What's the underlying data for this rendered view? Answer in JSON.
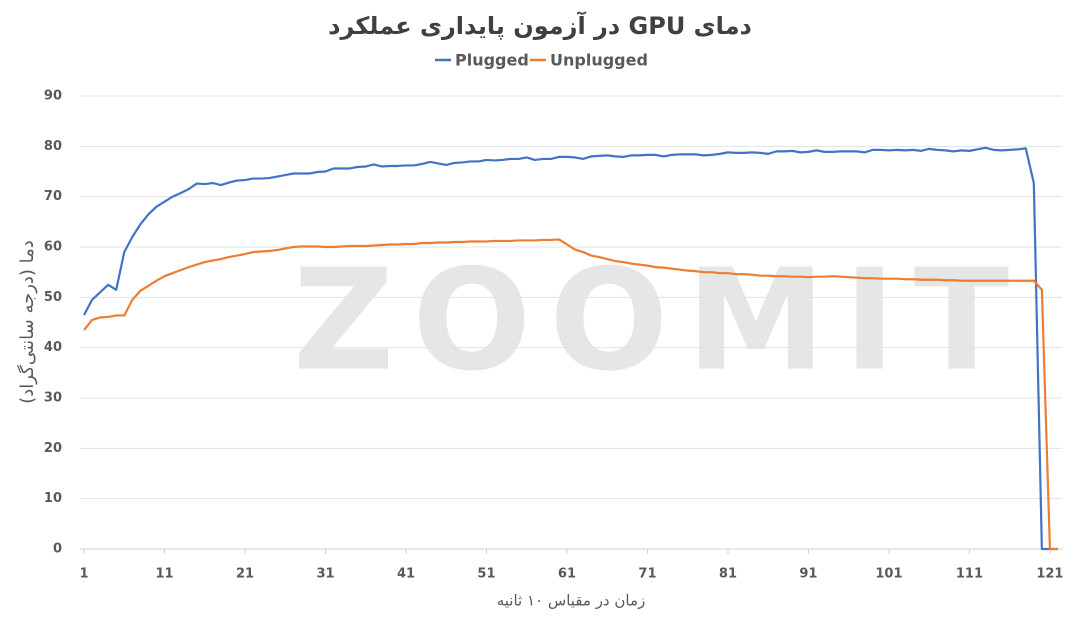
{
  "chart_data": {
    "type": "line",
    "title": "دمای GPU در آزمون پایداری عملکرد",
    "x_label": "زمان در مقیاس ۱۰ ثانیه",
    "y_label": "دما (درجه سانتی‌گراد)",
    "watermark": "ZOOMIT",
    "x": [
      1,
      2,
      3,
      4,
      5,
      6,
      7,
      8,
      9,
      10,
      11,
      12,
      13,
      14,
      15,
      16,
      17,
      18,
      19,
      20,
      21,
      22,
      23,
      24,
      25,
      26,
      27,
      28,
      29,
      30,
      31,
      32,
      33,
      34,
      35,
      36,
      37,
      38,
      39,
      40,
      41,
      42,
      43,
      44,
      45,
      46,
      47,
      48,
      49,
      50,
      51,
      52,
      53,
      54,
      55,
      56,
      57,
      58,
      59,
      60,
      61,
      62,
      63,
      64,
      65,
      66,
      67,
      68,
      69,
      70,
      71,
      72,
      73,
      74,
      75,
      76,
      77,
      78,
      79,
      80,
      81,
      82,
      83,
      84,
      85,
      86,
      87,
      88,
      89,
      90,
      91,
      92,
      93,
      94,
      95,
      96,
      97,
      98,
      99,
      100,
      101,
      102,
      103,
      104,
      105,
      106,
      107,
      108,
      109,
      110,
      111,
      112,
      113,
      114,
      115,
      116,
      117,
      118,
      119,
      120,
      121,
      122
    ],
    "series": [
      {
        "name": "Plugged",
        "color": "#4472c4",
        "values": [
          46.5,
          49.5,
          51,
          52.5,
          51.5,
          59,
          62,
          64.5,
          66.5,
          68,
          69,
          70,
          70.7,
          71.5,
          72.6,
          72.5,
          72.7,
          72.3,
          72.8,
          73.2,
          73.3,
          73.6,
          73.6,
          73.7,
          74,
          74.3,
          74.6,
          74.6,
          74.6,
          74.9,
          75,
          75.6,
          75.6,
          75.6,
          75.9,
          76,
          76.4,
          76,
          76.1,
          76.1,
          76.2,
          76.2,
          76.5,
          76.9,
          76.6,
          76.3,
          76.7,
          76.8,
          77,
          77,
          77.3,
          77.2,
          77.3,
          77.5,
          77.5,
          77.8,
          77.3,
          77.5,
          77.5,
          77.9,
          77.9,
          77.8,
          77.5,
          78,
          78.1,
          78.2,
          78,
          77.9,
          78.2,
          78.2,
          78.3,
          78.3,
          78,
          78.3,
          78.4,
          78.4,
          78.4,
          78.2,
          78.3,
          78.5,
          78.8,
          78.7,
          78.7,
          78.8,
          78.7,
          78.5,
          79,
          79,
          79.1,
          78.8,
          78.9,
          79.2,
          78.9,
          78.9,
          79,
          79,
          79,
          78.8,
          79.3,
          79.3,
          79.2,
          79.3,
          79.2,
          79.3,
          79.1,
          79.5,
          79.3,
          79.2,
          79,
          79.2,
          79.1,
          79.4,
          79.7,
          79.3,
          79.2,
          79.3,
          79.4,
          79.6,
          72.7,
          0,
          0,
          0
        ]
      },
      {
        "name": "Unplugged",
        "color": "#ed7d31",
        "values": [
          43.5,
          45.5,
          46,
          46.1,
          46.4,
          46.4,
          49.5,
          51.3,
          52.3,
          53.3,
          54.2,
          54.8,
          55.4,
          56,
          56.5,
          57,
          57.3,
          57.6,
          58,
          58.3,
          58.6,
          59,
          59.1,
          59.2,
          59.4,
          59.7,
          60,
          60.1,
          60.1,
          60.1,
          60,
          60,
          60.1,
          60.2,
          60.2,
          60.2,
          60.3,
          60.4,
          60.5,
          60.5,
          60.6,
          60.6,
          60.8,
          60.8,
          60.9,
          60.9,
          61,
          61,
          61.1,
          61.1,
          61.1,
          61.2,
          61.2,
          61.2,
          61.3,
          61.3,
          61.3,
          61.4,
          61.4,
          61.5,
          60.5,
          59.5,
          59,
          58.3,
          58,
          57.6,
          57.2,
          57,
          56.7,
          56.5,
          56.3,
          56,
          55.9,
          55.7,
          55.5,
          55.3,
          55.2,
          55,
          55,
          54.8,
          54.8,
          54.6,
          54.6,
          54.5,
          54.3,
          54.3,
          54.2,
          54.2,
          54.1,
          54.1,
          54,
          54.1,
          54.1,
          54.2,
          54.1,
          54,
          53.9,
          53.8,
          53.8,
          53.7,
          53.7,
          53.7,
          53.6,
          53.6,
          53.5,
          53.5,
          53.5,
          53.4,
          53.4,
          53.3,
          53.3,
          53.3,
          53.3,
          53.3,
          53.3,
          53.3,
          53.3,
          53.3,
          53.3,
          51.5,
          0,
          0
        ]
      }
    ],
    "xlim": [
      0.5,
      122.5
    ],
    "xticks": [
      1,
      11,
      21,
      31,
      41,
      51,
      61,
      71,
      81,
      91,
      101,
      111,
      121
    ],
    "ylim": [
      0,
      90
    ],
    "yticks": [
      0,
      10,
      20,
      30,
      40,
      50,
      60,
      70,
      80,
      90
    ],
    "grid": true,
    "legend": "top"
  }
}
